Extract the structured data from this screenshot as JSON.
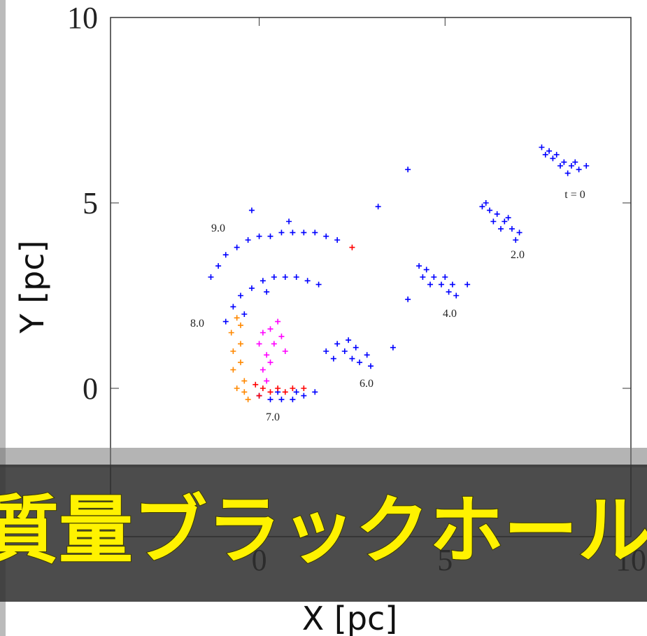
{
  "chart_data": {
    "type": "scatter",
    "x_label": "X [pc]",
    "y_label": "Y [pc]",
    "xlim": [
      -4,
      10
    ],
    "ylim": [
      -4,
      10
    ],
    "xticks": [
      0,
      5,
      10
    ],
    "yticks": [
      0,
      5,
      10
    ],
    "annotations": [
      "t = 0",
      "2.0",
      "4.0",
      "6.0",
      "7.0",
      "8.0",
      "9.0"
    ],
    "series": [
      {
        "color": "#0000ff",
        "x": [
          7.6,
          7.8,
          8.0,
          8.2,
          8.4,
          8.6,
          7.9,
          8.3,
          8.5,
          7.7,
          8.1,
          8.8,
          6.0,
          6.2,
          6.4,
          6.6,
          6.8,
          7.0,
          6.3,
          6.7,
          6.5,
          6.1,
          6.9,
          4.3,
          4.5,
          4.7,
          4.9,
          5.1,
          5.3,
          4.6,
          5.0,
          4.4,
          5.2,
          5.6,
          1.8,
          2.1,
          2.3,
          2.5,
          2.7,
          2.9,
          2.4,
          2.6,
          2.0,
          3.0,
          3.6,
          -1.1,
          -0.9,
          -0.6,
          -0.3,
          0.0,
          0.3,
          0.6,
          0.9,
          1.2,
          1.5,
          1.8,
          2.1,
          -1.3,
          0.8,
          -0.2,
          -0.9,
          -0.7,
          -0.5,
          -0.2,
          0.1,
          0.4,
          0.7,
          1.0,
          1.3,
          -0.4,
          0.2,
          1.6,
          0.0,
          0.3,
          0.6,
          0.9,
          1.2,
          1.5,
          0.5,
          1.0,
          4.0,
          3.2,
          4.0
        ],
        "y": [
          6.5,
          6.4,
          6.3,
          6.1,
          6.0,
          5.9,
          6.2,
          5.8,
          6.1,
          6.3,
          6.0,
          6.0,
          4.9,
          4.8,
          4.7,
          4.5,
          4.3,
          4.2,
          4.5,
          4.6,
          4.3,
          5.0,
          4.0,
          3.3,
          3.2,
          3.0,
          2.8,
          2.6,
          2.5,
          2.8,
          3.0,
          3.0,
          2.8,
          2.8,
          1.0,
          1.2,
          1.0,
          0.8,
          0.7,
          0.9,
          1.3,
          1.1,
          0.8,
          0.6,
          1.1,
          3.3,
          3.6,
          3.8,
          4.0,
          4.1,
          4.1,
          4.2,
          4.2,
          4.2,
          4.2,
          4.1,
          4.0,
          3.0,
          4.5,
          4.8,
          1.8,
          2.2,
          2.5,
          2.7,
          2.9,
          3.0,
          3.0,
          3.0,
          2.9,
          2.0,
          2.6,
          2.8,
          -0.2,
          -0.3,
          -0.3,
          -0.3,
          -0.2,
          -0.1,
          -0.1,
          -0.1,
          5.9,
          4.9,
          2.4
        ]
      },
      {
        "color": "#ff8800",
        "x": [
          -0.75,
          -0.7,
          -0.7,
          -0.6,
          -0.5,
          -0.5,
          -0.5,
          -0.4,
          -0.3,
          -0.6,
          -0.4
        ],
        "y": [
          1.5,
          1.0,
          0.5,
          0.0,
          1.7,
          1.2,
          0.7,
          0.2,
          -0.3,
          1.9,
          -0.1
        ]
      },
      {
        "color": "#ff00ff",
        "x": [
          0.0,
          0.1,
          0.2,
          0.3,
          0.4,
          0.5,
          0.6,
          0.1,
          0.2,
          0.7,
          0.3
        ],
        "y": [
          1.2,
          1.5,
          0.9,
          1.6,
          1.2,
          1.8,
          1.4,
          0.5,
          0.2,
          1.0,
          0.7
        ]
      },
      {
        "color": "#ff0000",
        "x": [
          -0.1,
          0.1,
          0.3,
          0.5,
          0.7,
          0.9,
          1.2,
          0.0,
          2.5
        ],
        "y": [
          0.1,
          0.0,
          -0.1,
          0.0,
          -0.1,
          0.0,
          0.0,
          -0.2,
          3.8
        ]
      }
    ]
  },
  "caption": "質量ブラックホール"
}
